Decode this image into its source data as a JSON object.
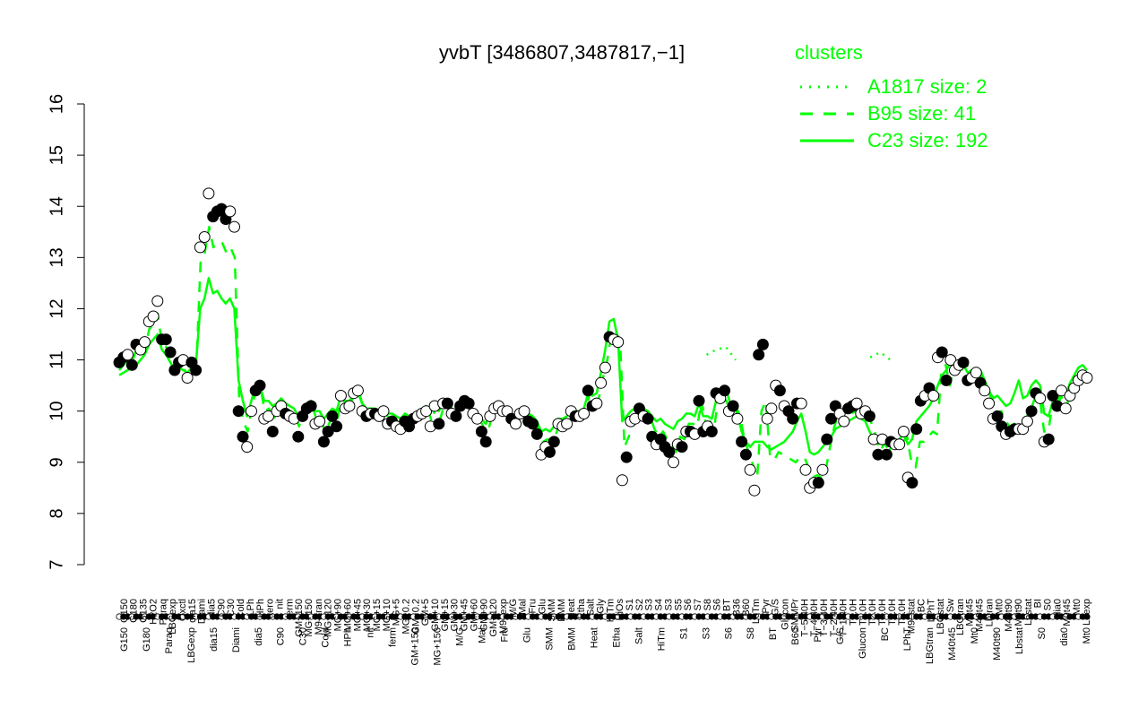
{
  "chart_data": {
    "type": "line",
    "title": "yvbT [3486807,3487817,−1]",
    "ylim": [
      7,
      16
    ],
    "yticks": [
      7,
      8,
      9,
      10,
      11,
      12,
      13,
      14,
      15,
      16
    ],
    "legend": {
      "title": "clusters",
      "placement": "top-right",
      "entries": [
        {
          "label": "A1817 size: 2",
          "style": "dotted"
        },
        {
          "label": "B95 size: 41",
          "style": "dashed"
        },
        {
          "label": "C23 size: 192",
          "style": "solid"
        }
      ]
    },
    "series_color": "#00ff00",
    "x_labels_top": [
      "G150",
      "G180",
      "G135",
      "H2O2",
      "Paraq",
      "LBGexp",
      "Oxctl",
      "dia15",
      "Diami",
      "dia5",
      "C90",
      "C30",
      "Cold",
      "LPh",
      "HPh",
      "aero",
      "nit",
      "ferm",
      "GM+150",
      "MG+150",
      "M9–tran",
      "MG+120",
      "MG+90",
      "MG+60",
      "MG+45",
      "MG+30",
      "MG+15",
      "MG+10",
      "MG+5",
      "MG−0.2",
      "GM−0.2",
      "GM+5",
      "GM+10",
      "GM+15",
      "GM+30",
      "GM+45",
      "GM+60",
      "GM+90",
      "GM+120",
      "M9–exp",
      "M/G",
      "Mal",
      "Fru",
      "Glu",
      "SMM",
      "BMM",
      "Heat",
      "Etha",
      "Salt",
      "Gly",
      "HiTm",
      "HiOs",
      "S1",
      "S2",
      "S3",
      "S4",
      "S3",
      "S5",
      "S6",
      "S7",
      "S8",
      "S6",
      "BT",
      "B36",
      "B60",
      "LoTm",
      "Pyr",
      "G/S",
      "Glucon",
      "SMMPr",
      "T−5.40H",
      "T−4.40H",
      "T−3.40H",
      "T−2.40H",
      "T−1.40H",
      "T0.0H",
      "T1.0H",
      "T2.0H",
      "T3.0H",
      "T4.0H",
      "T5.0H",
      "M9–stat",
      "BC",
      "LPhT",
      "LBGstat",
      "Sw",
      "LBGtran",
      "M0t45",
      "M40t45",
      "Lbtran",
      "Mt0",
      "M40t90",
      "M0t90",
      "Lbstat",
      "BI",
      "S0",
      "dia0",
      "M0t45",
      "Mt0",
      "Lbexp"
    ],
    "x_labels_bottom": [
      "G150",
      "G180",
      "Paraq",
      "LBGexp",
      "dia15",
      "Diami",
      "dia5",
      "C90",
      "C30",
      "Cold",
      "HPh",
      "nit",
      "ferm",
      "GM+150",
      "MG+150",
      "M/G",
      "Mal",
      "Fru",
      "Glu",
      "SMM",
      "BMM",
      "Heat",
      "Etha",
      "Salt",
      "HiTm",
      "S1",
      "S3",
      "S6",
      "S8",
      "BT",
      "B60",
      "Pyr",
      "G/S",
      "Glucon",
      "BC",
      "LPhT",
      "LBGtran",
      "M40t45",
      "Mt0",
      "M40t90",
      "Lbstat",
      "S0",
      "dia0",
      "Mt0"
    ],
    "points_value": [
      10.95,
      11.05,
      11.1,
      10.9,
      11.3,
      11.2,
      11.35,
      11.75,
      11.85,
      12.15,
      11.4,
      11.4,
      11.15,
      10.8,
      10.95,
      11.0,
      10.65,
      10.95,
      10.8,
      13.2,
      13.4,
      14.25,
      13.8,
      13.9,
      13.95,
      13.75,
      13.9,
      13.6,
      10.0,
      9.5,
      9.3,
      10.0,
      10.4,
      10.5,
      9.85,
      9.9,
      9.6,
      10.0,
      10.1,
      9.95,
      9.9,
      9.85,
      9.5,
      9.9,
      10.05,
      10.1,
      9.75,
      9.8,
      9.4,
      9.6,
      9.9,
      9.7,
      10.3,
      10.05,
      10.1,
      10.35,
      10.4,
      10.0,
      9.9,
      9.95,
      9.95,
      9.9,
      10.0,
      9.75,
      9.8,
      9.7,
      9.65,
      9.8,
      9.7,
      9.85,
      9.9,
      9.95,
      10.0,
      9.7,
      10.1,
      9.75,
      10.15,
      10.15,
      9.95,
      9.9,
      10.1,
      10.2,
      10.15,
      9.95,
      9.85,
      9.6,
      9.4,
      9.9,
      10.05,
      10.1,
      10.0,
      10.0,
      9.85,
      9.75,
      9.95,
      10.0,
      9.8,
      9.75,
      9.55,
      9.15,
      9.3,
      9.2,
      9.4,
      9.75,
      9.7,
      9.75,
      10.0,
      9.9,
      9.9,
      9.95,
      10.4,
      10.1,
      10.15,
      10.55,
      10.85,
      11.45,
      11.4,
      11.35,
      8.65,
      9.1,
      9.8,
      9.85,
      10.05,
      9.9,
      9.85,
      9.5,
      9.35,
      9.45,
      9.3,
      9.2,
      9.0,
      9.35,
      9.3,
      9.6,
      9.6,
      9.55,
      10.2,
      9.6,
      9.7,
      9.6,
      10.35,
      10.25,
      10.4,
      10.0,
      10.1,
      9.85,
      9.4,
      9.15,
      8.85,
      8.45,
      11.1,
      11.3,
      9.85,
      10.05,
      10.5,
      10.4,
      10.1,
      10.0,
      9.85,
      10.15,
      10.15,
      8.85,
      8.5,
      8.6,
      8.6,
      8.85,
      9.45,
      9.85,
      10.1,
      9.95,
      9.8,
      10.05,
      10.1,
      10.15,
      9.95,
      10.0,
      9.9,
      9.45,
      9.15,
      9.45,
      9.15,
      9.4,
      9.35,
      9.35,
      9.6,
      8.7,
      8.6,
      9.65,
      10.2,
      10.3,
      10.45,
      10.3,
      11.05,
      11.15,
      10.6,
      11.0,
      10.8,
      10.9,
      10.95,
      10.6,
      10.65,
      10.75,
      10.55,
      10.4,
      10.15,
      9.85,
      9.9,
      9.7,
      9.55,
      9.6,
      9.65,
      9.65,
      9.65,
      9.8,
      10.0,
      10.35,
      10.25,
      9.4,
      9.45,
      10.3,
      10.1,
      10.4,
      10.05,
      10.3,
      10.45,
      10.6,
      10.7,
      10.65
    ],
    "points_filled": [
      true,
      true,
      false,
      true,
      true,
      false,
      false,
      false,
      false,
      false,
      true,
      true,
      true,
      true,
      true,
      false,
      false,
      true,
      true,
      false,
      false,
      false,
      true,
      true,
      true,
      true,
      false,
      false,
      true,
      true,
      false,
      false,
      true,
      true,
      false,
      false,
      true,
      false,
      false,
      true,
      false,
      false,
      true,
      true,
      true,
      true,
      false,
      false,
      true,
      true,
      true,
      true,
      false,
      false,
      false,
      false,
      false,
      false,
      true,
      false,
      true,
      false,
      false,
      false,
      true,
      false,
      false,
      true,
      true,
      true,
      false,
      false,
      false,
      false,
      false,
      true,
      false,
      true,
      false,
      true,
      true,
      true,
      true,
      false,
      false,
      true,
      true,
      false,
      false,
      false,
      false,
      false,
      true,
      false,
      false,
      false,
      true,
      true,
      true,
      false,
      false,
      true,
      true,
      false,
      false,
      false,
      false,
      true,
      false,
      false,
      true,
      true,
      false,
      false,
      false,
      true,
      false,
      false,
      false,
      true,
      false,
      false,
      true,
      false,
      true,
      true,
      false,
      true,
      true,
      true,
      false,
      false,
      true,
      false,
      true,
      false,
      true,
      true,
      false,
      true,
      true,
      false,
      true,
      false,
      true,
      false,
      true,
      true,
      false,
      false,
      true,
      true,
      false,
      false,
      false,
      true,
      false,
      true,
      true,
      true,
      false,
      false,
      false,
      false,
      true,
      false,
      true,
      true,
      true,
      false,
      false,
      true,
      true,
      false,
      false,
      false,
      true,
      false,
      true,
      false,
      true,
      true,
      false,
      false,
      false,
      false,
      true,
      true,
      true,
      false,
      true,
      false,
      false,
      true,
      true,
      false,
      false,
      false,
      true,
      true,
      false,
      false,
      true,
      false,
      false,
      false,
      true,
      true,
      false,
      true,
      true,
      false,
      false,
      false,
      true,
      true,
      false,
      false,
      true,
      true,
      true
    ],
    "c23_line": [
      10.7,
      10.75,
      10.8,
      10.85,
      10.9,
      11.0,
      11.1,
      11.3,
      11.4,
      11.5,
      11.2,
      11.1,
      10.95,
      10.8,
      10.85,
      10.8,
      10.75,
      10.85,
      10.9,
      12.0,
      12.2,
      12.6,
      12.3,
      12.35,
      12.2,
      12.1,
      12.2,
      12.0,
      10.6,
      10.2,
      9.9,
      10.2,
      10.5,
      10.5,
      10.2,
      10.2,
      10.1,
      10.15,
      10.25,
      10.15,
      10.1,
      10.05,
      9.9,
      10.0,
      10.15,
      10.2,
      10.0,
      10.0,
      9.85,
      9.95,
      10.05,
      10.0,
      10.3,
      10.2,
      10.2,
      10.3,
      10.35,
      10.15,
      10.05,
      10.05,
      10.05,
      10.0,
      10.05,
      9.95,
      9.95,
      9.9,
      9.85,
      9.95,
      9.9,
      9.95,
      10.0,
      10.05,
      10.1,
      9.95,
      10.15,
      10.0,
      10.15,
      10.15,
      10.05,
      10.0,
      10.1,
      10.15,
      10.1,
      10.0,
      9.95,
      9.85,
      9.75,
      9.95,
      10.05,
      10.1,
      10.05,
      10.05,
      9.95,
      9.9,
      10.0,
      10.05,
      9.95,
      9.9,
      9.8,
      9.6,
      9.65,
      9.6,
      9.7,
      9.85,
      9.85,
      9.9,
      10.05,
      10.0,
      10.0,
      10.05,
      10.35,
      10.3,
      10.35,
      10.75,
      11.2,
      11.75,
      11.8,
      11.4,
      9.8,
      9.9,
      10.0,
      10.05,
      10.1,
      10.05,
      10.0,
      9.9,
      9.8,
      9.85,
      9.75,
      9.7,
      9.65,
      9.8,
      9.85,
      9.95,
      9.95,
      9.9,
      10.15,
      9.9,
      9.9,
      9.85,
      10.2,
      10.2,
      10.25,
      10.1,
      10.1,
      9.95,
      9.6,
      9.4,
      9.3,
      9.4,
      9.4,
      9.4,
      9.3,
      9.25,
      9.3,
      9.35,
      9.4,
      9.5,
      9.6,
      9.8,
      9.95,
      9.6,
      9.2,
      9.15,
      9.2,
      9.3,
      9.4,
      9.5,
      9.65,
      9.7,
      9.75,
      9.8,
      9.85,
      9.9,
      9.85,
      9.8,
      9.6,
      9.45,
      9.35,
      9.45,
      9.3,
      9.4,
      9.4,
      9.45,
      9.55,
      9.35,
      9.45,
      9.8,
      9.9,
      10.0,
      10.1,
      10.25,
      10.5,
      10.7,
      10.8,
      10.95,
      10.9,
      10.9,
      10.9,
      10.75,
      10.8,
      10.8,
      10.8,
      10.6,
      10.4,
      10.25,
      10.3,
      10.2,
      10.1,
      10.15,
      10.35,
      10.6,
      10.25,
      10.3,
      10.5,
      10.6,
      10.5,
      9.95,
      9.9,
      10.2,
      10.1,
      10.45,
      10.3,
      10.55,
      10.7,
      10.85,
      10.9,
      10.8
    ],
    "b95_line": [
      10.8,
      10.9,
      11.0,
      10.95,
      11.2,
      11.1,
      11.2,
      11.6,
      11.7,
      11.9,
      11.3,
      11.25,
      11.05,
      10.8,
      10.9,
      10.85,
      10.7,
      10.9,
      10.85,
      12.9,
      13.1,
      13.6,
      13.2,
      13.3,
      13.3,
      13.1,
      13.2,
      13.0,
      10.3,
      9.8,
      9.6,
      10.1,
      10.4,
      10.45,
      10.0,
      10.05,
      9.8,
      10.05,
      10.15,
      10.05,
      10.0,
      9.95,
      9.7,
      9.95,
      10.1,
      10.15,
      9.85,
      9.9,
      9.6,
      9.75,
      9.95,
      9.85,
      10.3,
      10.1,
      10.15,
      10.35,
      10.4,
      10.05,
      9.95,
      10.0,
      10.0,
      9.95,
      10.0,
      9.85,
      9.85,
      9.8,
      9.75,
      9.85,
      9.8,
      9.9,
      9.95,
      10.0,
      10.05,
      9.8,
      10.1,
      9.85,
      10.15,
      10.15,
      10.0,
      9.95,
      10.1,
      10.2,
      10.1,
      9.95,
      9.9,
      9.7,
      9.55,
      9.9,
      10.05,
      10.1,
      10.0,
      10.0,
      9.9,
      9.8,
      9.95,
      10.0,
      9.85,
      9.8,
      9.65,
      9.4,
      9.45,
      9.4,
      9.55,
      9.8,
      9.75,
      9.8,
      10.0,
      9.95,
      9.95,
      10.0,
      10.4,
      10.2,
      10.25,
      10.65,
      11.0,
      11.55,
      11.55,
      11.35,
      9.3,
      9.5,
      9.85,
      9.9,
      10.05,
      9.95,
      9.9,
      9.65,
      9.5,
      9.6,
      9.45,
      9.35,
      9.2,
      9.5,
      9.45,
      9.75,
      9.75,
      9.7,
      10.2,
      9.75,
      9.8,
      9.7,
      10.3,
      10.25,
      10.35,
      10.05,
      10.1,
      9.9,
      9.45,
      9.2,
      8.95,
      8.7,
      10.0,
      10.2,
      9.1,
      9.05,
      9.2,
      9.15,
      9.1,
      9.05,
      9.0,
      9.1,
      9.1,
      8.9,
      8.7,
      8.75,
      8.7,
      8.85,
      9.3,
      9.7,
      9.95,
      9.85,
      9.8,
      9.95,
      10.0,
      10.05,
      9.9,
      9.9,
      9.7,
      9.45,
      9.25,
      9.45,
      9.25,
      9.4,
      9.35,
      9.4,
      9.5,
      9.0,
      8.9,
      9.4,
      9.4,
      9.5,
      9.6,
      9.55,
      10.8,
      10.9,
      10.5,
      10.9,
      10.7,
      10.85,
      10.9,
      10.6,
      10.65,
      10.75,
      10.55,
      10.4,
      10.15,
      9.95,
      10.0,
      9.8,
      9.7,
      9.75,
      9.75,
      9.75,
      9.9,
      10.05,
      10.3,
      10.25,
      9.6,
      9.6,
      10.2,
      10.05,
      10.3,
      10.05,
      10.3,
      10.45,
      10.6,
      10.7,
      10.65
    ],
    "a1817_segments": [
      {
        "x0": 0.607,
        "x1": 0.637,
        "values": [
          11.1,
          11.2,
          11.25,
          11.0
        ]
      },
      {
        "x0": 0.776,
        "x1": 0.797,
        "values": [
          11.05,
          11.15,
          11.0
        ]
      }
    ]
  }
}
